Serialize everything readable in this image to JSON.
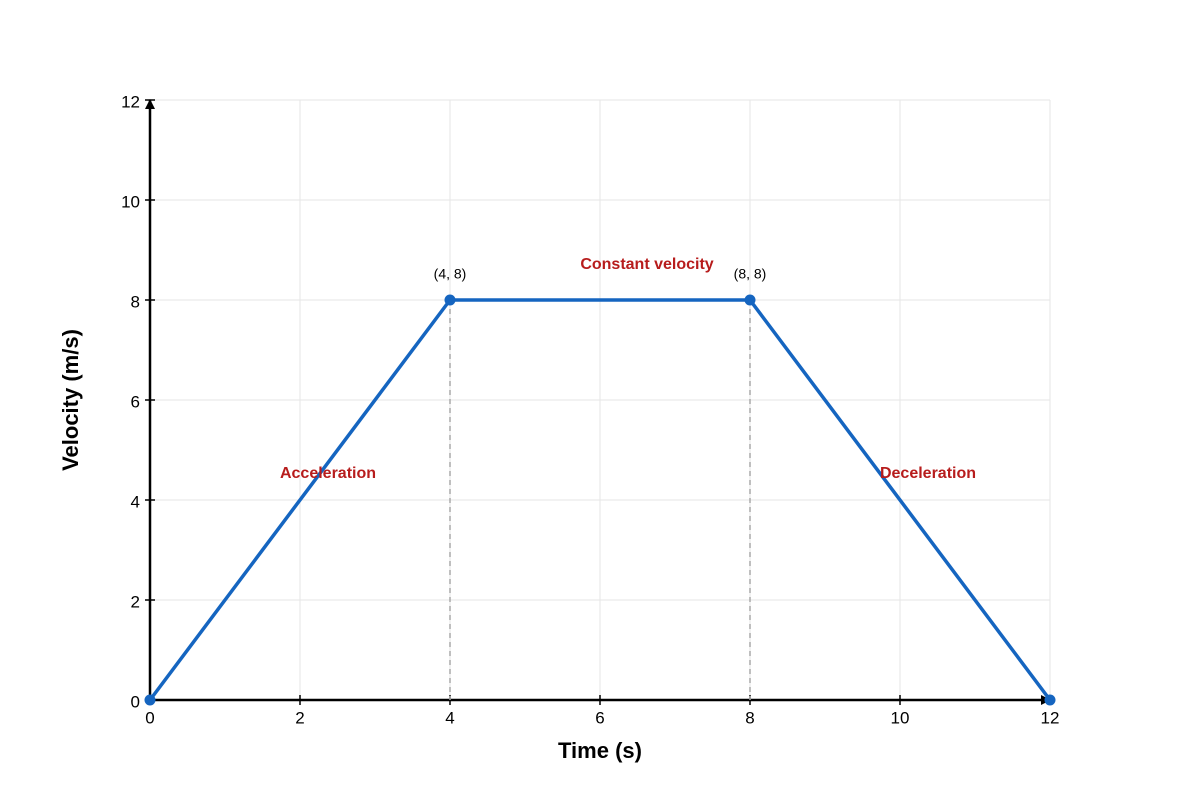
{
  "chart_data": {
    "type": "line",
    "x_label": "Time (s)",
    "y_label": "Velocity (m/s)",
    "x": [
      0,
      4,
      8,
      12
    ],
    "series": [
      {
        "color": "#1565c0",
        "values": [
          0,
          8,
          8,
          0
        ],
        "value_labels": [
          null,
          "(4, 8)",
          "(8, 8)",
          null
        ]
      }
    ],
    "annotations": [
      "Acceleration",
      "Constant velocity",
      "Deceleration"
    ],
    "annotation_color": "#b71c1c",
    "xlim": [
      0,
      12
    ],
    "ylim": [
      0,
      12
    ],
    "xticks": [
      0,
      2,
      4,
      6,
      8,
      10,
      12
    ],
    "yticks": [
      0,
      2,
      4,
      6,
      8,
      10,
      12
    ],
    "grid": true
  }
}
